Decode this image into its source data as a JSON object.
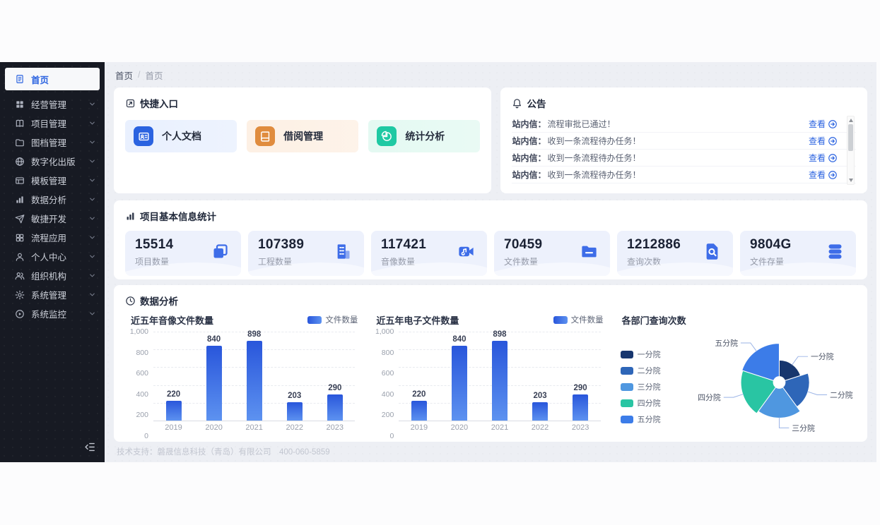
{
  "colors": {
    "accent": "#2b63e0",
    "sidebar_bg": "#171a23",
    "main_bg": "#edeff4"
  },
  "breadcrumb": {
    "items": [
      "首页",
      "首页"
    ],
    "separator": "/"
  },
  "sidebar": {
    "items": [
      {
        "label": "首页",
        "icon": "home-doc",
        "active": true,
        "has_children": false
      },
      {
        "label": "经营管理",
        "icon": "grid",
        "active": false,
        "has_children": true
      },
      {
        "label": "项目管理",
        "icon": "book",
        "active": false,
        "has_children": true
      },
      {
        "label": "图档管理",
        "icon": "folder",
        "active": false,
        "has_children": true
      },
      {
        "label": "数字化出版",
        "icon": "globe",
        "active": false,
        "has_children": true
      },
      {
        "label": "模板管理",
        "icon": "template",
        "active": false,
        "has_children": true
      },
      {
        "label": "数据分析",
        "icon": "bar-chart",
        "active": false,
        "has_children": true
      },
      {
        "label": "敏捷开发",
        "icon": "send",
        "active": false,
        "has_children": true
      },
      {
        "label": "流程应用",
        "icon": "apps",
        "active": false,
        "has_children": true
      },
      {
        "label": "个人中心",
        "icon": "user",
        "active": false,
        "has_children": true
      },
      {
        "label": "组织机构",
        "icon": "users",
        "active": false,
        "has_children": true
      },
      {
        "label": "系统管理",
        "icon": "gear",
        "active": false,
        "has_children": true
      },
      {
        "label": "系统监控",
        "icon": "monitor",
        "active": false,
        "has_children": true
      }
    ]
  },
  "quick_entry": {
    "title": "快捷入口",
    "tiles": [
      {
        "label": "个人文档",
        "icon": "person-card",
        "icon_bg": "#2b63e0",
        "tile_bg": "#e9f0fe"
      },
      {
        "label": "借阅管理",
        "icon": "book2",
        "icon_bg": "#e08c3e",
        "tile_bg": "#fdf0e4"
      },
      {
        "label": "统计分析",
        "icon": "pie",
        "icon_bg": "#1fc9a3",
        "tile_bg": "#e4f9f2"
      }
    ]
  },
  "announcements": {
    "title": "公告",
    "view_label": "查看",
    "items": [
      {
        "prefix": "站内信：",
        "text": "流程审批已通过！"
      },
      {
        "prefix": "站内信：",
        "text": "收到一条流程待办任务！"
      },
      {
        "prefix": "站内信：",
        "text": "收到一条流程待办任务！"
      },
      {
        "prefix": "站内信：",
        "text": "收到一条流程待办任务！"
      }
    ]
  },
  "stats": {
    "title": "项目基本信息统计",
    "cards": [
      {
        "value": "15514",
        "label": "项目数量",
        "icon": "folders"
      },
      {
        "value": "107389",
        "label": "工程数量",
        "icon": "building"
      },
      {
        "value": "117421",
        "label": "音像数量",
        "icon": "video"
      },
      {
        "value": "70459",
        "label": "文件数量",
        "icon": "folder-files"
      },
      {
        "value": "1212886",
        "label": "查询次数",
        "icon": "doc-search"
      },
      {
        "value": "9804G",
        "label": "文件存量",
        "icon": "database"
      }
    ]
  },
  "analysis": {
    "title": "数据分析"
  },
  "chart_data": [
    {
      "type": "bar",
      "title": "近五年音像文件数量",
      "legend": [
        "文件数量"
      ],
      "categories": [
        "2019",
        "2020",
        "2021",
        "2022",
        "2023"
      ],
      "values": [
        220,
        840,
        898,
        203,
        290
      ],
      "ylim": [
        0,
        1000
      ],
      "yticks": [
        "0",
        "200",
        "400",
        "600",
        "800",
        "1,000"
      ],
      "bar_colors": [
        "#2956db",
        "#5d92f0"
      ],
      "grid": true,
      "legend_position": "top-right"
    },
    {
      "type": "bar",
      "title": "近五年电子文件数量",
      "legend": [
        "文件数量"
      ],
      "categories": [
        "2019",
        "2020",
        "2021",
        "2022",
        "2023"
      ],
      "values": [
        220,
        840,
        898,
        203,
        290
      ],
      "ylim": [
        0,
        1000
      ],
      "yticks": [
        "0",
        "200",
        "400",
        "600",
        "800",
        "1,000"
      ],
      "bar_colors": [
        "#2956db",
        "#5d92f0"
      ],
      "grid": true,
      "legend_position": "top-right"
    },
    {
      "type": "pie",
      "subtype": "rose",
      "title": "各部门查询次数",
      "labels": [
        "一分院",
        "二分院",
        "三分院",
        "四分院",
        "五分院"
      ],
      "values_estimate": [
        33,
        58,
        82,
        95,
        100
      ],
      "radii_pct": [
        57,
        77,
        91,
        98,
        100
      ],
      "colors": [
        "#17366e",
        "#2e66b8",
        "#4f97e0",
        "#29c5a3",
        "#3c7ce8"
      ],
      "legend_position": "left",
      "center_hole": true
    }
  ],
  "footer": {
    "text": "技术支持：磐晟信息科技（青岛）有限公司　400-060-5859"
  }
}
